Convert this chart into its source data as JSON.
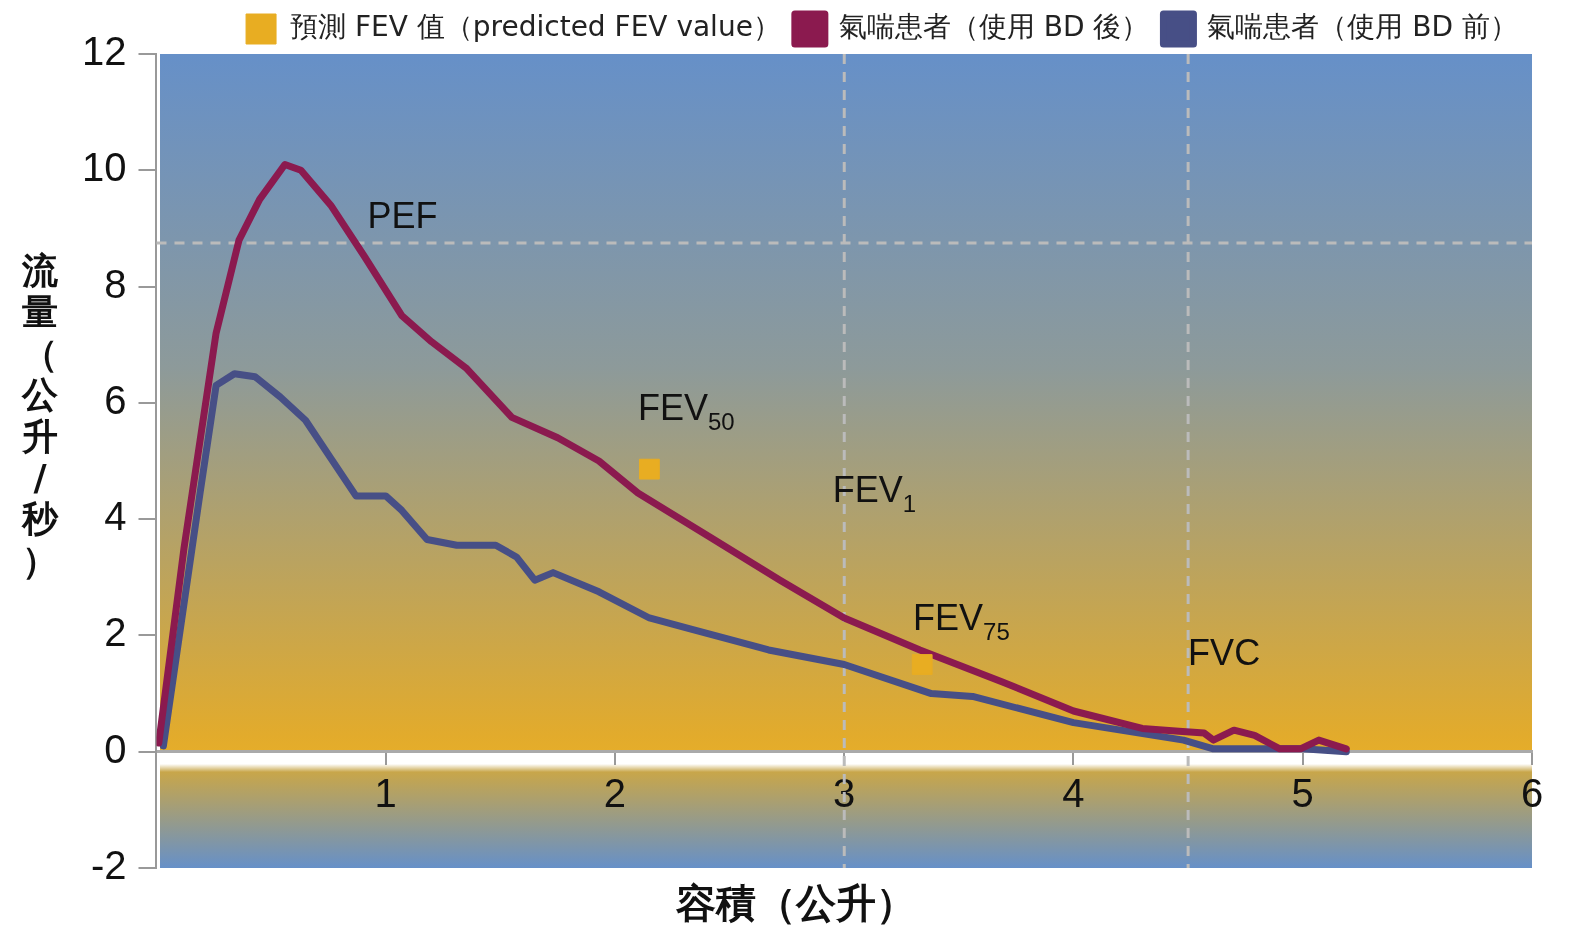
{
  "chart_data": {
    "type": "line",
    "xlabel": "容積（公升）",
    "ylabel": "流量（公升/秒）",
    "xlim": [
      0,
      6
    ],
    "ylim": [
      -2,
      12
    ],
    "xticks": [
      1,
      2,
      3,
      4,
      5,
      6
    ],
    "yticks": [
      -2,
      0,
      2,
      4,
      6,
      8,
      10,
      12
    ],
    "grid": false,
    "legend": "top right",
    "series": [
      {
        "name": "預測 FEV 值（predicted FEV value）",
        "type": "scatter",
        "marker": "square",
        "color": "#e8ad22",
        "x": [
          2.15,
          3.34
        ],
        "values": [
          4.86,
          1.5
        ]
      },
      {
        "name": "氣喘患者（使用 BD 後）",
        "marker": "none",
        "color": "#8b1a4f",
        "x": [
          0.01,
          0.12,
          0.26,
          0.36,
          0.45,
          0.56,
          0.63,
          0.76,
          0.91,
          1.07,
          1.2,
          1.35,
          1.55,
          1.75,
          1.93,
          2.1,
          2.41,
          2.72,
          3.0,
          3.33,
          3.69,
          4.0,
          4.3,
          4.46,
          4.57,
          4.61,
          4.7,
          4.79,
          4.9,
          4.99,
          5.07,
          5.19
        ],
        "values": [
          0.15,
          3.5,
          7.2,
          8.8,
          9.5,
          10.1,
          10.0,
          9.4,
          8.5,
          7.5,
          7.05,
          6.6,
          5.75,
          5.4,
          5.0,
          4.45,
          3.7,
          2.95,
          2.3,
          1.75,
          1.2,
          0.7,
          0.4,
          0.35,
          0.32,
          0.2,
          0.37,
          0.28,
          0.05,
          0.05,
          0.2,
          0.05
        ]
      },
      {
        "name": "氣喘患者（使用 BD 前）",
        "marker": "none",
        "color": "#474f86",
        "x": [
          0.03,
          0.19,
          0.26,
          0.34,
          0.43,
          0.54,
          0.65,
          0.76,
          0.87,
          1.0,
          1.07,
          1.18,
          1.31,
          1.48,
          1.57,
          1.65,
          1.73,
          1.93,
          2.15,
          2.34,
          2.67,
          3.0,
          3.38,
          3.56,
          4.0,
          4.48,
          4.61,
          5.0,
          5.19
        ],
        "values": [
          0.1,
          4.45,
          6.3,
          6.5,
          6.45,
          6.1,
          5.7,
          5.05,
          4.4,
          4.4,
          4.15,
          3.65,
          3.55,
          3.55,
          3.35,
          2.95,
          3.08,
          2.75,
          2.3,
          2.1,
          1.75,
          1.5,
          1.0,
          0.95,
          0.5,
          0.2,
          0.05,
          0.05,
          0
        ]
      }
    ],
    "ref_lines": [
      {
        "axis": "y",
        "value": 8.75,
        "color": "#bbbbbb",
        "line_style": "dashed"
      },
      {
        "axis": "x",
        "value": 3,
        "color": "#bbbbbb",
        "line_style": "dashed"
      },
      {
        "axis": "x",
        "value": 4.5,
        "color": "#bbbbbb",
        "line_style": "dashed"
      }
    ],
    "annotations": [
      "PEF",
      "FEV$_{50}$",
      "FEV$_{1}$",
      "FEV$_{75}$",
      "FVC"
    ]
  }
}
